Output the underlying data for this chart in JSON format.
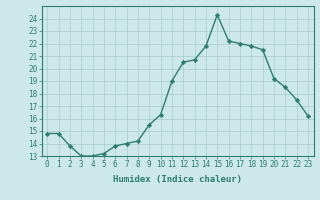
{
  "x": [
    0,
    1,
    2,
    3,
    4,
    5,
    6,
    7,
    8,
    9,
    10,
    11,
    12,
    13,
    14,
    15,
    16,
    17,
    18,
    19,
    20,
    21,
    22,
    23
  ],
  "y": [
    14.8,
    14.8,
    13.8,
    13.0,
    13.0,
    13.2,
    13.8,
    14.0,
    14.2,
    15.5,
    16.3,
    19.0,
    20.5,
    20.7,
    21.8,
    24.3,
    22.2,
    22.0,
    21.8,
    21.5,
    19.2,
    18.5,
    17.5,
    16.2
  ],
  "xlabel": "Humidex (Indice chaleur)",
  "ylim": [
    13,
    25
  ],
  "yticks": [
    13,
    14,
    15,
    16,
    17,
    18,
    19,
    20,
    21,
    22,
    23,
    24
  ],
  "line_color": "#2e7d6e",
  "marker": "D",
  "markersize": 2.2,
  "bg_color": "#cce8e8",
  "grid_color_major": "#aacccc",
  "grid_color_minor": "#bbdddd",
  "xlabel_fontsize": 6.5,
  "tick_fontsize": 5.5,
  "linewidth": 1.0,
  "spine_color": "#2e7d6e"
}
